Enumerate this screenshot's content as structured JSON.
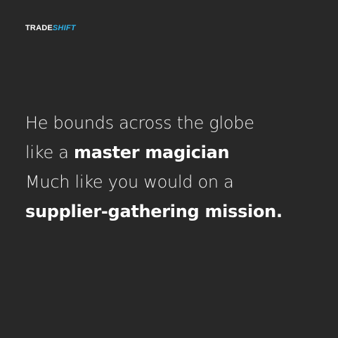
{
  "brand": {
    "part1": "TRADE",
    "part2": "SHIFT",
    "accent": "#2db1e8"
  },
  "message": {
    "line1": "He bounds across the globe",
    "line2_prefix": "like a ",
    "line2_bold": "master magician",
    "line3": "Much like you would on a",
    "line4_bold": "supplier-gathering mission."
  },
  "colors": {
    "background": "#282828",
    "text": "#ffffff"
  }
}
